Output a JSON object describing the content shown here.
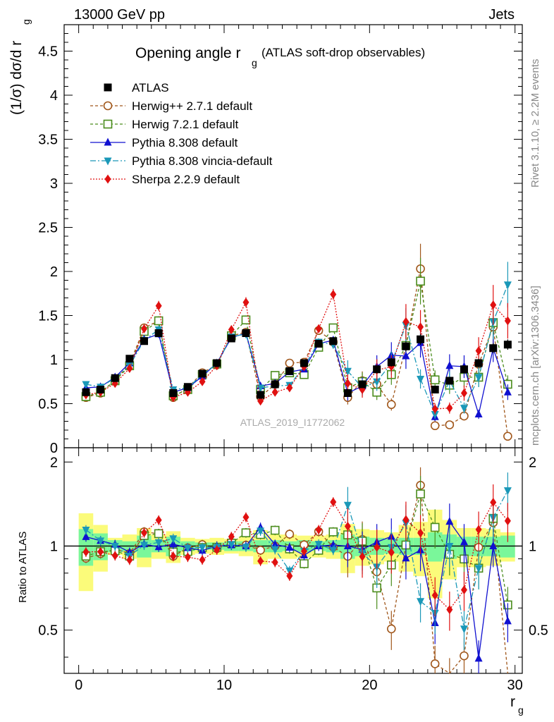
{
  "header": {
    "left": "13000 GeV pp",
    "right": "Jets"
  },
  "side_labels": {
    "rivet": "Rivet 3.1.10, ≥ 2.2M events",
    "mcplots": "mcplots.cern.ch [arXiv:1306.3436]"
  },
  "watermark": "ATLAS_2019_I1772062",
  "chart_data": {
    "type": "line",
    "title": "Opening angle r",
    "title_sub": "g",
    "title_suffix": "(ATLAS soft-drop observables)",
    "xlabel": "r",
    "xlabel_sub": "g",
    "ylabel": "(1/σ) dσ/d r",
    "ylabel_sub": "g",
    "ratio_ylabel": "Ratio to ATLAS",
    "xlim": [
      -1,
      30.5
    ],
    "ylim": [
      0,
      4.8
    ],
    "ratio_ylim": [
      0.35,
      2.25
    ],
    "x_ticks": [
      "0",
      "10",
      "20",
      "30"
    ],
    "y_ticks": [
      "0",
      "0.5",
      "1",
      "1.5",
      "2",
      "2.5",
      "3",
      "3.5",
      "4",
      "4.5"
    ],
    "ratio_ticks": [
      "0.5",
      "1",
      "2"
    ],
    "legend_position": "top-left",
    "x": [
      0.5,
      1.5,
      2.5,
      3.5,
      4.5,
      5.5,
      6.5,
      7.5,
      8.5,
      9.5,
      10.5,
      11.5,
      12.5,
      13.5,
      14.5,
      15.5,
      16.5,
      17.5,
      18.5,
      19.5,
      20.5,
      21.5,
      22.5,
      23.5,
      24.5,
      25.5,
      26.5,
      27.5,
      28.5,
      29.5
    ],
    "data": {
      "name": "ATLAS",
      "values": [
        0.63,
        0.66,
        0.79,
        1.01,
        1.21,
        1.3,
        0.62,
        0.69,
        0.84,
        0.96,
        1.24,
        1.3,
        0.6,
        0.72,
        0.87,
        0.96,
        1.18,
        1.21,
        0.62,
        0.72,
        0.89,
        0.97,
        1.15,
        1.23,
        0.66,
        0.76,
        0.89,
        0.96,
        1.13,
        1.17
      ]
    },
    "ratio_bands": {
      "inner": [
        0.15,
        0.11,
        0.05,
        0.04,
        0.09,
        0.05,
        0.08,
        0.04,
        0.03,
        0.03,
        0.04,
        0.04,
        0.05,
        0.05,
        0.04,
        0.05,
        0.04,
        0.05,
        0.1,
        0.08,
        0.07,
        0.06,
        0.07,
        0.07,
        0.12,
        0.1,
        0.08,
        0.08,
        0.08,
        0.09
      ],
      "outer": [
        0.31,
        0.19,
        0.07,
        0.1,
        0.16,
        0.1,
        0.13,
        0.07,
        0.06,
        0.07,
        0.06,
        0.08,
        0.14,
        0.1,
        0.1,
        0.09,
        0.09,
        0.1,
        0.2,
        0.15,
        0.14,
        0.12,
        0.19,
        0.22,
        0.35,
        0.24,
        0.16,
        0.16,
        0.15,
        0.12
      ]
    },
    "series": [
      {
        "name": "Herwig++ 2.7.1 default",
        "color": "#a0561a",
        "marker": "circle-open",
        "dash": "4,3",
        "values": [
          0.57,
          0.62,
          0.77,
          0.95,
          1.36,
          1.44,
          0.57,
          0.68,
          0.85,
          0.94,
          1.27,
          1.31,
          0.58,
          0.72,
          0.96,
          0.97,
          1.33,
          1.2,
          0.57,
          0.76,
          0.72,
          0.49,
          1.16,
          2.03,
          0.25,
          0.26,
          0.36,
          0.95,
          1.37,
          0.13
        ]
      },
      {
        "name": "Herwig 7.2.1 default",
        "color": "#4a8c1c",
        "marker": "square-open",
        "dash": "4,3",
        "values": [
          0.58,
          0.63,
          0.76,
          0.93,
          1.32,
          1.44,
          0.59,
          0.66,
          0.83,
          0.95,
          1.27,
          1.45,
          0.66,
          0.82,
          0.85,
          0.83,
          1.14,
          1.36,
          0.68,
          0.75,
          0.63,
          0.83,
          1.16,
          1.89,
          0.77,
          0.71,
          0.8,
          0.8,
          1.42,
          0.72
        ]
      },
      {
        "name": "Pythia 8.308 default",
        "color": "#1010d0",
        "marker": "triangle-up",
        "dash": "",
        "values": [
          0.68,
          0.69,
          0.8,
          0.96,
          1.23,
          1.29,
          0.63,
          0.68,
          0.81,
          0.96,
          1.25,
          1.3,
          0.7,
          0.73,
          0.86,
          0.89,
          1.18,
          1.22,
          0.62,
          0.7,
          0.92,
          1.05,
          1.04,
          1.19,
          0.35,
          0.93,
          0.92,
          0.38,
          1.13,
          0.63
        ]
      },
      {
        "name": "Pythia 8.308 vincia-default",
        "color": "#1a98b8",
        "marker": "triangle-down",
        "dash": "8,3,2,3",
        "values": [
          0.72,
          0.69,
          0.79,
          0.93,
          1.22,
          1.34,
          0.66,
          0.68,
          0.83,
          0.95,
          1.26,
          1.29,
          0.68,
          0.7,
          0.71,
          0.92,
          1.2,
          1.17,
          0.87,
          0.68,
          0.75,
          0.96,
          1.39,
          0.78,
          0.38,
          0.76,
          0.45,
          0.8,
          1.43,
          1.85
        ]
      },
      {
        "name": "Sherpa 2.2.9 default",
        "color": "#e01010",
        "marker": "diamond",
        "dash": "2,2",
        "values": [
          0.6,
          0.63,
          0.73,
          0.9,
          1.35,
          1.61,
          0.57,
          0.63,
          0.75,
          0.93,
          1.34,
          1.65,
          0.53,
          0.63,
          0.68,
          0.92,
          1.35,
          1.74,
          0.73,
          0.66,
          0.88,
          0.92,
          1.43,
          1.37,
          0.44,
          0.45,
          0.62,
          1.1,
          1.62,
          1.44
        ]
      }
    ]
  }
}
